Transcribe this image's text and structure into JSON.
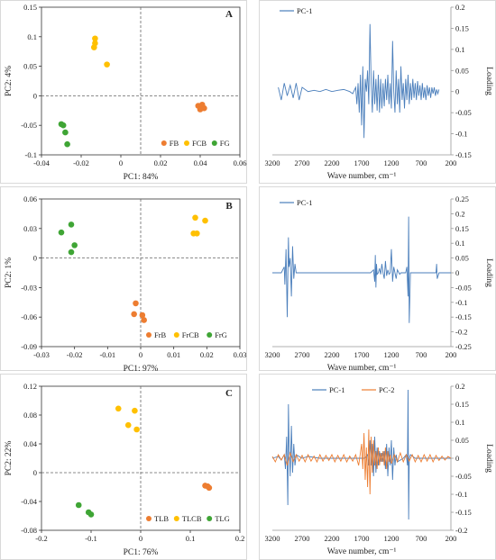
{
  "chart_data": [
    {
      "id": "A-scores",
      "type": "scatter",
      "panel_label": "A",
      "xlabel": "PC1: 84%",
      "ylabel": "PC2: 4%",
      "xlim": [
        -0.04,
        0.06
      ],
      "ylim": [
        -0.1,
        0.15
      ],
      "xticks": [
        -0.04,
        -0.02,
        0,
        0.02,
        0.04,
        0.06
      ],
      "xtick_labels": [
        "-0.04",
        "-0.02",
        "0",
        "0.02",
        "0.04",
        "0.06"
      ],
      "yticks": [
        -0.1,
        -0.05,
        0,
        0.05,
        0.1,
        0.15
      ],
      "ytick_labels": [
        "-0.1",
        "-0.05",
        "0",
        "0.05",
        "0.1",
        "0.15"
      ],
      "dashed_x": 0.01,
      "dashed_y": 0,
      "legend_position": "bottom-right",
      "series": [
        {
          "name": "FB",
          "color": "#ED7D31",
          "points": [
            [
              0.039,
              -0.017
            ],
            [
              0.041,
              -0.018
            ],
            [
              0.04,
              -0.023
            ],
            [
              0.042,
              -0.021
            ],
            [
              0.041,
              -0.015
            ]
          ]
        },
        {
          "name": "FCB",
          "color": "#FFC000",
          "points": [
            [
              -0.013,
              0.097
            ],
            [
              -0.013,
              0.089
            ],
            [
              -0.0135,
              0.082
            ],
            [
              -0.007,
              0.053
            ]
          ]
        },
        {
          "name": "FG",
          "color": "#3FA535",
          "points": [
            [
              -0.03,
              -0.048
            ],
            [
              -0.029,
              -0.05
            ],
            [
              -0.028,
              -0.062
            ],
            [
              -0.027,
              -0.082
            ]
          ]
        }
      ]
    },
    {
      "id": "A-loading",
      "type": "line",
      "xlabel": "Wave number, cm⁻¹",
      "ylabel": "Loading",
      "xlim": [
        3200,
        200
      ],
      "ylim": [
        -0.15,
        0.2
      ],
      "xticks": [
        3200,
        2700,
        2200,
        1700,
        1200,
        700,
        200
      ],
      "xtick_labels": [
        "3200",
        "2700",
        "2200",
        "1700",
        "1200",
        "700",
        "200"
      ],
      "yticks": [
        -0.15,
        -0.1,
        -0.05,
        0,
        0.05,
        0.1,
        0.15,
        0.2
      ],
      "ytick_labels": [
        "-0.15",
        "-0.1",
        "-0.05",
        "0",
        "0.05",
        "0.1",
        "0.15",
        "0.2"
      ],
      "legend_position": "top-left",
      "series": [
        {
          "name": "PC-1",
          "color": "#4A7EBB",
          "x": [
            3100,
            3050,
            3000,
            2950,
            2900,
            2850,
            2800,
            2750,
            2700,
            2600,
            2500,
            2400,
            2300,
            2200,
            2100,
            2000,
            1900,
            1850,
            1800,
            1780,
            1760,
            1740,
            1720,
            1700,
            1680,
            1660,
            1640,
            1620,
            1600,
            1580,
            1560,
            1540,
            1520,
            1500,
            1480,
            1460,
            1440,
            1420,
            1400,
            1380,
            1360,
            1340,
            1320,
            1300,
            1280,
            1260,
            1240,
            1220,
            1200,
            1180,
            1160,
            1140,
            1120,
            1100,
            1080,
            1060,
            1040,
            1020,
            1000,
            980,
            960,
            940,
            920,
            900,
            880,
            860,
            840,
            820,
            800,
            780,
            760,
            740,
            720,
            700,
            680,
            660,
            640,
            620,
            600,
            580,
            560,
            540,
            520,
            500,
            480,
            460,
            440,
            420,
            400
          ],
          "y": [
            0.01,
            -0.02,
            0.02,
            -0.01,
            0.015,
            -0.015,
            0.02,
            -0.02,
            0.01,
            0.0,
            0.003,
            0.0,
            0.005,
            0.0,
            0.003,
            0.005,
            0.0,
            -0.005,
            0.01,
            -0.03,
            0.02,
            -0.05,
            0.04,
            -0.08,
            0.06,
            -0.11,
            0.03,
            0.0,
            0.05,
            -0.03,
            0.16,
            0.02,
            -0.05,
            0.05,
            -0.03,
            0.03,
            -0.045,
            0.04,
            -0.05,
            0.03,
            -0.04,
            0.02,
            -0.035,
            0.03,
            -0.02,
            0.04,
            -0.03,
            0.02,
            -0.04,
            0.12,
            0.0,
            -0.05,
            0.05,
            -0.03,
            0.03,
            -0.05,
            0.06,
            -0.02,
            0.02,
            -0.04,
            0.03,
            -0.02,
            0.04,
            -0.03,
            0.02,
            -0.02,
            0.03,
            -0.015,
            0.02,
            -0.02,
            0.025,
            -0.01,
            0.015,
            -0.02,
            0.02,
            -0.015,
            0.01,
            -0.02,
            0.015,
            -0.01,
            0.01,
            -0.015,
            0.01,
            -0.005,
            0.01,
            -0.01,
            0.005,
            -0.005,
            0.005
          ]
        }
      ]
    },
    {
      "id": "B-scores",
      "type": "scatter",
      "panel_label": "B",
      "xlabel": "PC1: 97%",
      "ylabel": "PC2: 1%",
      "xlim": [
        -0.03,
        0.03
      ],
      "ylim": [
        -0.09,
        0.06
      ],
      "xticks": [
        -0.03,
        -0.02,
        -0.01,
        0,
        0.01,
        0.02,
        0.03
      ],
      "xtick_labels": [
        "-0.03",
        "-0.02",
        "-0.01",
        "0",
        "0.01",
        "0.02",
        "0.03"
      ],
      "yticks": [
        -0.09,
        -0.06,
        -0.03,
        0,
        0.03,
        0.06
      ],
      "ytick_labels": [
        "-0.09",
        "-0.06",
        "-0.03",
        "0",
        "0.03",
        "0.06"
      ],
      "dashed_x": 0,
      "dashed_y": 0,
      "legend_position": "bottom-right",
      "series": [
        {
          "name": "FrB",
          "color": "#ED7D31",
          "points": [
            [
              -0.0015,
              -0.046
            ],
            [
              -0.002,
              -0.057
            ],
            [
              0.0005,
              -0.058
            ],
            [
              0.001,
              -0.063
            ]
          ]
        },
        {
          "name": "FrCB",
          "color": "#FFC000",
          "points": [
            [
              0.0165,
              0.041
            ],
            [
              0.0195,
              0.038
            ],
            [
              0.016,
              0.025
            ],
            [
              0.017,
              0.025
            ]
          ]
        },
        {
          "name": "FrG",
          "color": "#3FA535",
          "points": [
            [
              -0.024,
              0.026
            ],
            [
              -0.021,
              0.034
            ],
            [
              -0.02,
              0.013
            ],
            [
              -0.021,
              0.006
            ]
          ]
        }
      ]
    },
    {
      "id": "B-loading",
      "type": "line",
      "xlabel": "Wave number, cm⁻¹",
      "ylabel": "Loading",
      "xlim": [
        3200,
        200
      ],
      "ylim": [
        -0.25,
        0.25
      ],
      "xticks": [
        3200,
        2700,
        2200,
        1700,
        1200,
        700,
        200
      ],
      "xtick_labels": [
        "3200",
        "2700",
        "2200",
        "1700",
        "1200",
        "700",
        "200"
      ],
      "yticks": [
        -0.25,
        -0.2,
        -0.15,
        -0.1,
        -0.05,
        0,
        0.05,
        0.1,
        0.15,
        0.2,
        0.25
      ],
      "ytick_labels": [
        "-0.25",
        "-0.2",
        "-0.15",
        "-0.1",
        "-0.05",
        "0",
        "0.05",
        "0.1",
        "0.15",
        "0.2",
        "0.25"
      ],
      "legend_position": "top-left",
      "series": [
        {
          "name": "PC-1",
          "color": "#4A7EBB",
          "x": [
            3200,
            3050,
            3000,
            2990,
            2970,
            2950,
            2930,
            2920,
            2900,
            2880,
            2860,
            2840,
            2820,
            2800,
            2700,
            2600,
            2400,
            2200,
            2000,
            1800,
            1700,
            1600,
            1550,
            1500,
            1480,
            1470,
            1460,
            1450,
            1440,
            1420,
            1400,
            1380,
            1360,
            1340,
            1320,
            1300,
            1280,
            1260,
            1240,
            1220,
            1200,
            1180,
            1160,
            1140,
            1120,
            1100,
            1060,
            1040,
            1000,
            960,
            940,
            930,
            920,
            910,
            900,
            880,
            800,
            700,
            600,
            500,
            450,
            440,
            430,
            400,
            300,
            200
          ],
          "y": [
            0.0,
            0.0,
            0.02,
            -0.04,
            0.08,
            -0.15,
            0.12,
            0.02,
            0.05,
            -0.08,
            0.09,
            -0.02,
            0.03,
            0.0,
            0.0,
            0.0,
            0.0,
            0.0,
            0.0,
            0.0,
            0.0,
            0.0,
            0.0,
            0.01,
            -0.03,
            0.06,
            -0.05,
            0.03,
            -0.005,
            0.0,
            0.015,
            -0.005,
            0.03,
            0.0,
            -0.02,
            0.04,
            -0.01,
            0.01,
            -0.005,
            0.0,
            0.08,
            -0.03,
            0.02,
            0.0,
            -0.02,
            0.01,
            -0.005,
            0.0,
            0.0,
            0.0,
            0.02,
            -0.03,
            -0.08,
            0.19,
            -0.17,
            0.0,
            0.0,
            0.0,
            0.0,
            0.0,
            0.0,
            0.03,
            -0.02,
            0.0,
            0.0,
            0.0
          ]
        }
      ]
    },
    {
      "id": "C-scores",
      "type": "scatter",
      "panel_label": "C",
      "xlabel": "PC1: 76%",
      "ylabel": "PC2: 22%",
      "xlim": [
        -0.2,
        0.2
      ],
      "ylim": [
        -0.08,
        0.12
      ],
      "xticks": [
        -0.2,
        -0.1,
        0,
        0.1,
        0.2
      ],
      "xtick_labels": [
        "-0.2",
        "-0.1",
        "0",
        "0.1",
        "0.2"
      ],
      "yticks": [
        -0.08,
        -0.04,
        0,
        0.04,
        0.08,
        0.12
      ],
      "ytick_labels": [
        "-0.08",
        "-0.04",
        "0",
        "0.04",
        "0.08",
        "0.12"
      ],
      "dashed_x": 0,
      "dashed_y": 0,
      "legend_position": "bottom-right",
      "series": [
        {
          "name": "TLB",
          "color": "#ED7D31",
          "points": [
            [
              0.13,
              -0.018
            ],
            [
              0.135,
              -0.019
            ],
            [
              0.138,
              -0.021
            ]
          ]
        },
        {
          "name": "TLCB",
          "color": "#FFC000",
          "points": [
            [
              -0.045,
              0.089
            ],
            [
              -0.012,
              0.086
            ],
            [
              -0.025,
              0.066
            ],
            [
              -0.008,
              0.06
            ]
          ]
        },
        {
          "name": "TLG",
          "color": "#3FA535",
          "points": [
            [
              -0.125,
              -0.045
            ],
            [
              -0.105,
              -0.055
            ],
            [
              -0.1,
              -0.058
            ]
          ]
        }
      ]
    },
    {
      "id": "C-loading",
      "type": "line",
      "xlabel": "Wave number, cm⁻¹",
      "ylabel": "Loading",
      "xlim": [
        3200,
        200
      ],
      "ylim": [
        -0.2,
        0.2
      ],
      "xticks": [
        3200,
        2700,
        2200,
        1700,
        1200,
        700,
        200
      ],
      "xtick_labels": [
        "3200",
        "2700",
        "2200",
        "1700",
        "1200",
        "700",
        "200"
      ],
      "yticks": [
        -0.2,
        -0.15,
        -0.1,
        -0.05,
        0,
        0.05,
        0.1,
        0.15,
        0.2
      ],
      "ytick_labels": [
        "-0.2",
        "-0.15",
        "-0.1",
        "-0.05",
        "0",
        "0.05",
        "0.1",
        "0.15",
        "0.2"
      ],
      "legend_position": "top-center",
      "series": [
        {
          "name": "PC-1",
          "color": "#4A7EBB",
          "x": [
            3200,
            3100,
            3050,
            3000,
            2980,
            2960,
            2940,
            2930,
            2920,
            2900,
            2880,
            2860,
            2840,
            2820,
            2800,
            2700,
            2600,
            2400,
            2200,
            2000,
            1800,
            1700,
            1650,
            1600,
            1580,
            1560,
            1540,
            1520,
            1500,
            1480,
            1460,
            1440,
            1420,
            1400,
            1380,
            1360,
            1340,
            1320,
            1300,
            1280,
            1260,
            1240,
            1220,
            1200,
            1180,
            1160,
            1140,
            1120,
            1100,
            1000,
            950,
            930,
            920,
            910,
            900,
            880,
            800,
            700,
            600,
            500,
            400,
            300,
            200
          ],
          "y": [
            0.0,
            0.005,
            -0.005,
            0.01,
            -0.03,
            0.06,
            -0.13,
            0.15,
            0.05,
            -0.05,
            0.09,
            -0.04,
            0.04,
            -0.02,
            0.01,
            0.0,
            0.005,
            0.0,
            0.0,
            0.0,
            0.0,
            0.0,
            0.0,
            0.01,
            -0.02,
            0.05,
            -0.02,
            0.04,
            -0.05,
            0.06,
            -0.04,
            0.03,
            -0.02,
            0.02,
            -0.01,
            0.015,
            -0.01,
            0.02,
            -0.03,
            0.04,
            -0.05,
            0.03,
            -0.02,
            0.05,
            -0.06,
            0.03,
            -0.02,
            0.01,
            -0.01,
            0.0,
            0.01,
            -0.02,
            0.19,
            -0.17,
            0.0,
            0.01,
            0.0,
            0.0,
            0.0,
            0.0,
            0.0,
            0.0,
            0.0
          ]
        },
        {
          "name": "PC-2",
          "color": "#ED7D31",
          "x": [
            3200,
            3150,
            3100,
            3050,
            3000,
            2950,
            2900,
            2850,
            2800,
            2750,
            2700,
            2650,
            2600,
            2550,
            2500,
            2450,
            2400,
            2350,
            2300,
            2250,
            2200,
            2150,
            2100,
            2050,
            2000,
            1950,
            1900,
            1850,
            1800,
            1750,
            1700,
            1680,
            1660,
            1640,
            1620,
            1600,
            1580,
            1560,
            1540,
            1520,
            1500,
            1480,
            1460,
            1440,
            1420,
            1400,
            1380,
            1360,
            1340,
            1320,
            1300,
            1280,
            1260,
            1240,
            1220,
            1200,
            1150,
            1100,
            1050,
            1000,
            950,
            900,
            850,
            800,
            750,
            700,
            650,
            600,
            550,
            500,
            450,
            400,
            350,
            300,
            250,
            200
          ],
          "y": [
            0.005,
            -0.01,
            0.01,
            -0.005,
            0.01,
            -0.02,
            0.015,
            -0.01,
            0.01,
            -0.008,
            0.008,
            -0.01,
            0.01,
            -0.008,
            0.006,
            -0.01,
            0.01,
            -0.008,
            0.008,
            -0.006,
            0.01,
            -0.01,
            0.008,
            -0.008,
            0.01,
            -0.01,
            0.006,
            -0.008,
            0.01,
            -0.02,
            0.04,
            -0.03,
            0.07,
            -0.06,
            0.03,
            -0.08,
            0.08,
            -0.1,
            0.06,
            -0.04,
            0.05,
            -0.02,
            0.02,
            -0.03,
            0.03,
            -0.02,
            0.015,
            -0.01,
            0.02,
            -0.02,
            0.03,
            -0.03,
            0.02,
            -0.01,
            0.01,
            -0.015,
            0.01,
            -0.01,
            0.015,
            -0.01,
            0.01,
            -0.008,
            0.01,
            -0.01,
            0.008,
            -0.01,
            0.01,
            -0.008,
            0.01,
            -0.01,
            0.008,
            -0.006,
            0.006,
            -0.005,
            0.005,
            0.0
          ]
        }
      ]
    }
  ]
}
